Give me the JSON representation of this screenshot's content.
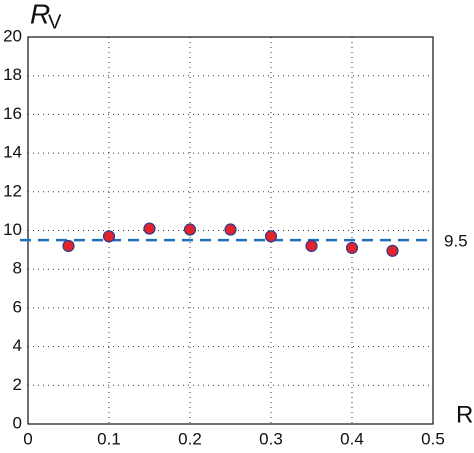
{
  "chart_data": {
    "type": "scatter",
    "ylabel": {
      "main": "R",
      "sub": "V"
    },
    "xlabel": "R",
    "series": [
      {
        "name": "points",
        "color": "#e3232c",
        "edge_color": "#2b3d8c",
        "x": [
          0.05,
          0.1,
          0.15,
          0.2,
          0.25,
          0.3,
          0.35,
          0.4,
          0.45
        ],
        "values": [
          9.2,
          9.7,
          10.1,
          10.05,
          10.05,
          9.7,
          9.2,
          9.1,
          8.95
        ]
      }
    ],
    "reference_line": {
      "value": 9.5,
      "label": "9.5",
      "color": "#2070b8",
      "dashed": true
    },
    "xlim": [
      0,
      0.5
    ],
    "xticks": [
      0,
      0.1,
      0.2,
      0.3,
      0.4,
      0.5
    ],
    "ylim": [
      0,
      20
    ],
    "yticks": [
      0,
      2,
      4,
      6,
      8,
      10,
      12,
      14,
      16,
      18,
      20
    ],
    "grid": true
  }
}
